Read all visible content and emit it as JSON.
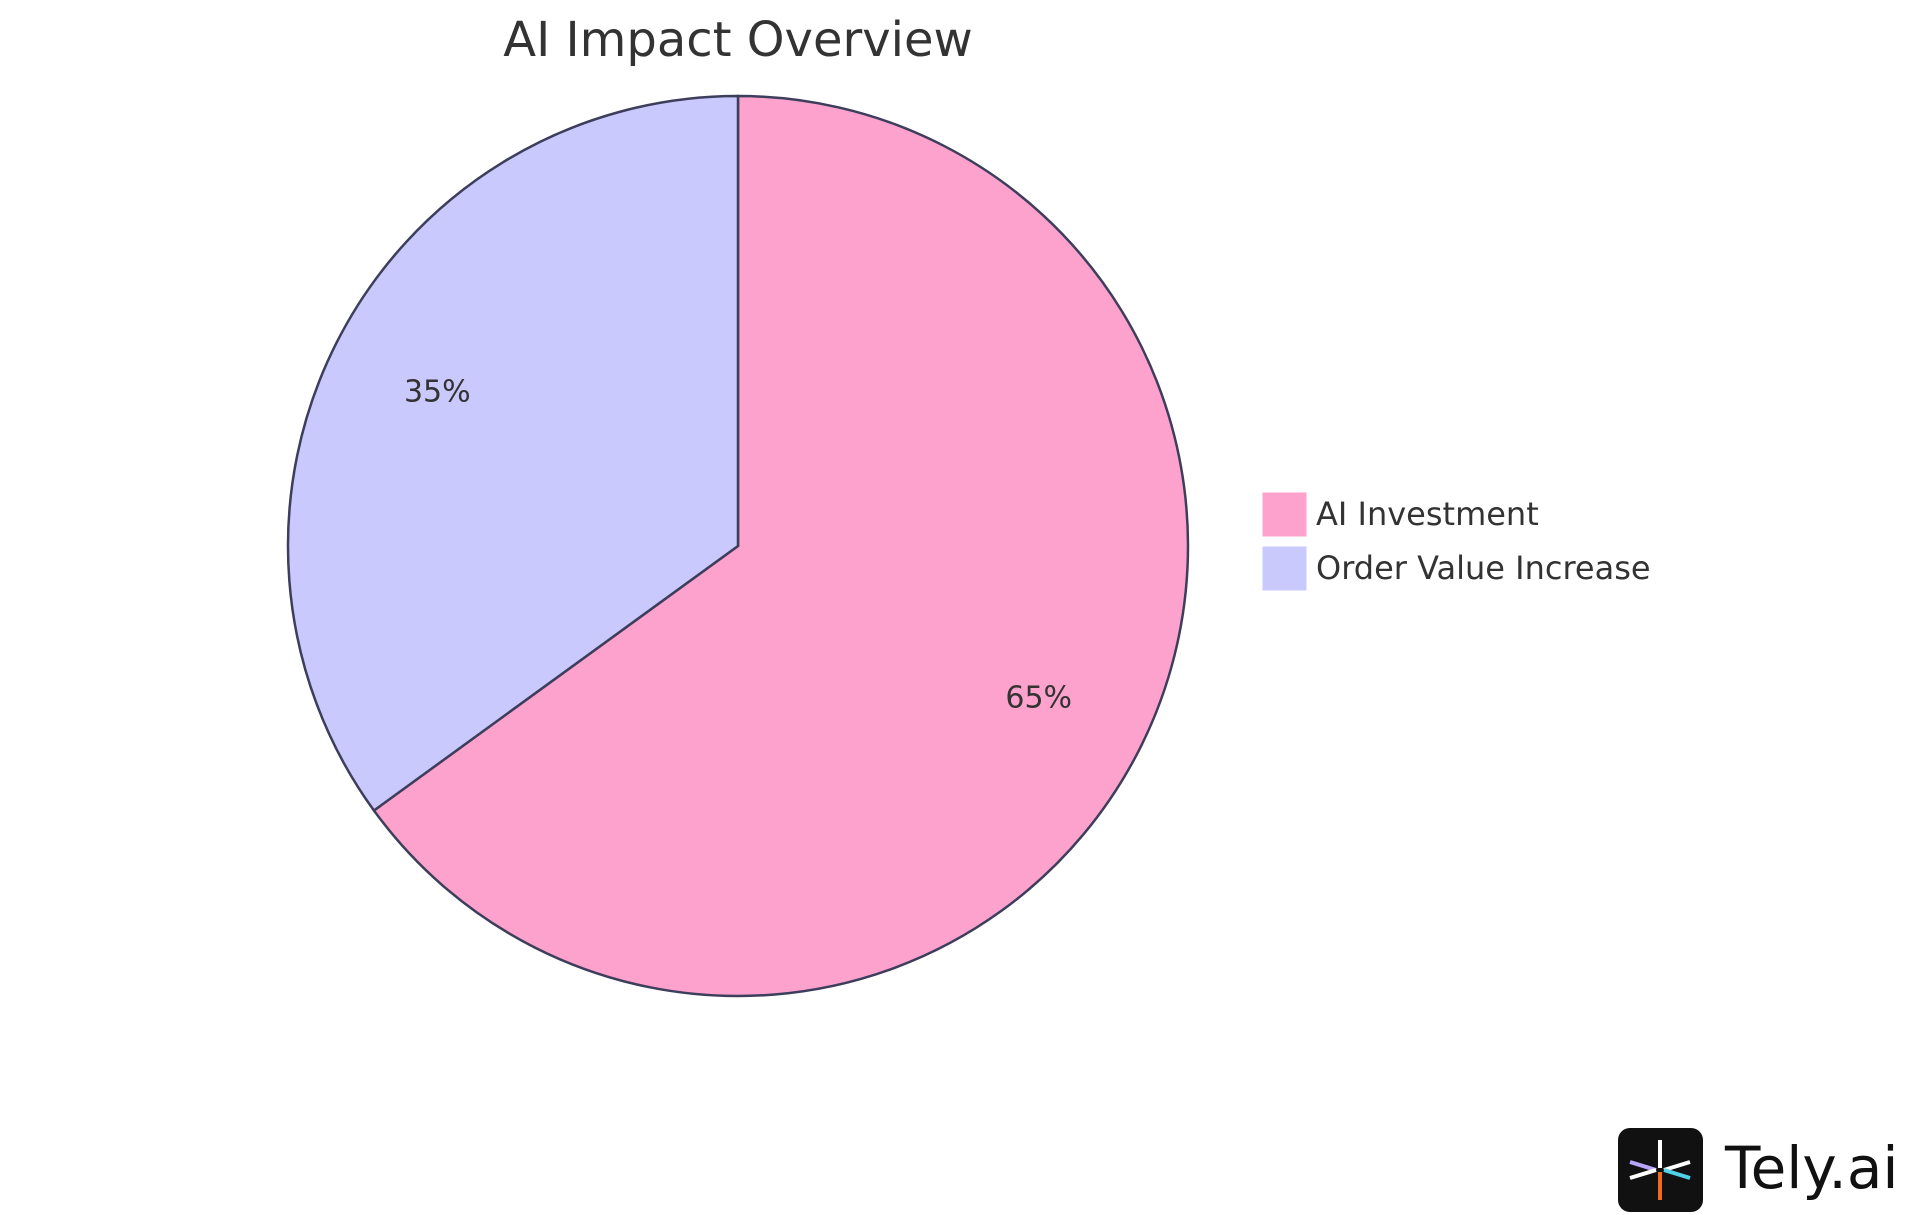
{
  "chart_data": {
    "type": "pie",
    "title": "AI Impact Overview",
    "categories": [
      "AI Investment",
      "Order Value Increase"
    ],
    "values": [
      65,
      35
    ],
    "value_labels": [
      "65%",
      "35%"
    ],
    "colors": [
      "#fda2cc",
      "#c9c9fd"
    ],
    "legend": "right"
  },
  "logo": {
    "text": "Tely.ai"
  }
}
